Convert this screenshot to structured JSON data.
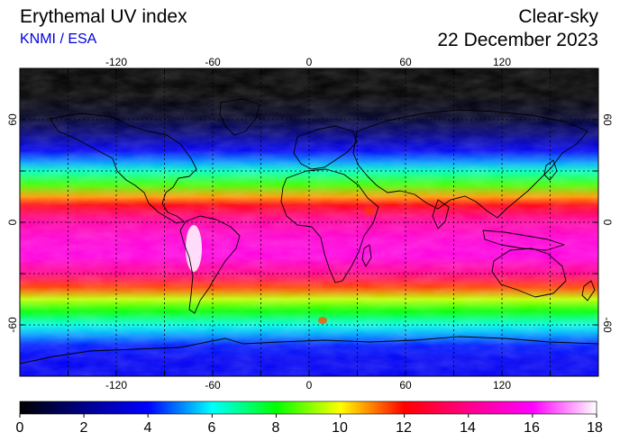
{
  "header": {
    "title": "Erythemal UV index",
    "credit": "KNMI / ESA",
    "condition": "Clear-sky",
    "date": "22 December 2023"
  },
  "map": {
    "projection": "equirectangular",
    "lon_range": [
      -180,
      180
    ],
    "lat_range": [
      -90,
      90
    ],
    "lon_ticks": [
      "-120",
      "-60",
      "0",
      "60",
      "120"
    ],
    "lat_ticks": [
      "60",
      "0",
      "-60"
    ],
    "gridlines": "dotted, every 30 degrees",
    "land_outlines": "black coastlines"
  },
  "colorbar": {
    "min": 0,
    "max": 18,
    "ticks": [
      "0",
      "2",
      "4",
      "6",
      "8",
      "10",
      "12",
      "14",
      "16",
      "18"
    ],
    "stops": [
      "#000000",
      "#000088",
      "#0000ff",
      "#00ffff",
      "#00ff00",
      "#ffff00",
      "#ff0000",
      "#ff0088",
      "#ff00ff",
      "#ffffff"
    ]
  },
  "uv_profile": [
    {
      "lat": 90,
      "uv": 0
    },
    {
      "lat": 75,
      "uv": 0
    },
    {
      "lat": 62,
      "uv": 0.5
    },
    {
      "lat": 52,
      "uv": 1.8
    },
    {
      "lat": 42,
      "uv": 3.8
    },
    {
      "lat": 35,
      "uv": 5.2
    },
    {
      "lat": 30,
      "uv": 6.5
    },
    {
      "lat": 22,
      "uv": 8.5
    },
    {
      "lat": 15,
      "uv": 10.8
    },
    {
      "lat": 10,
      "uv": 12.2
    },
    {
      "lat": 5,
      "uv": 13.5
    },
    {
      "lat": 0,
      "uv": 14.5
    },
    {
      "lat": -10,
      "uv": 15.3
    },
    {
      "lat": -20,
      "uv": 15.5
    },
    {
      "lat": -30,
      "uv": 14.0
    },
    {
      "lat": -38,
      "uv": 11.5
    },
    {
      "lat": -45,
      "uv": 9.5
    },
    {
      "lat": -52,
      "uv": 8.0
    },
    {
      "lat": -60,
      "uv": 6.2
    },
    {
      "lat": -66,
      "uv": 5.2
    },
    {
      "lat": -72,
      "uv": 4.2
    },
    {
      "lat": -80,
      "uv": 3.8
    },
    {
      "lat": -90,
      "uv": 3.8
    }
  ]
}
